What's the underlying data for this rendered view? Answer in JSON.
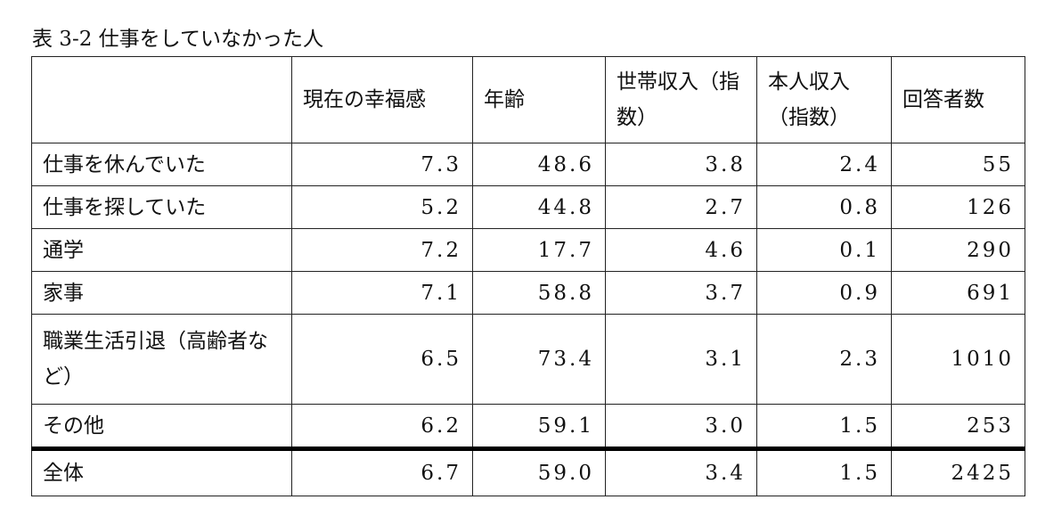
{
  "title": "表 3-2 仕事をしていなかった人",
  "table": {
    "header": [
      "",
      "現在の幸福感",
      "年齢",
      "世帯収入（指数）",
      "本人収入（指数）",
      "回答者数"
    ],
    "rows": [
      [
        "仕事を休んでいた",
        "7.3",
        "48.6",
        "3.8",
        "2.4",
        "55"
      ],
      [
        "仕事を探していた",
        "5.2",
        "44.8",
        "2.7",
        "0.8",
        "126"
      ],
      [
        "通学",
        "7.2",
        "17.7",
        "4.6",
        "0.1",
        "290"
      ],
      [
        "家事",
        "7.1",
        "58.8",
        "3.7",
        "0.9",
        "691"
      ],
      [
        "職業生活引退（高齢者など）",
        "6.5",
        "73.4",
        "3.1",
        "2.3",
        "1010"
      ],
      [
        "その他",
        "6.2",
        "59.1",
        "3.0",
        "1.5",
        "253"
      ]
    ],
    "total": [
      "全体",
      "6.7",
      "59.0",
      "3.4",
      "1.5",
      "2425"
    ]
  }
}
